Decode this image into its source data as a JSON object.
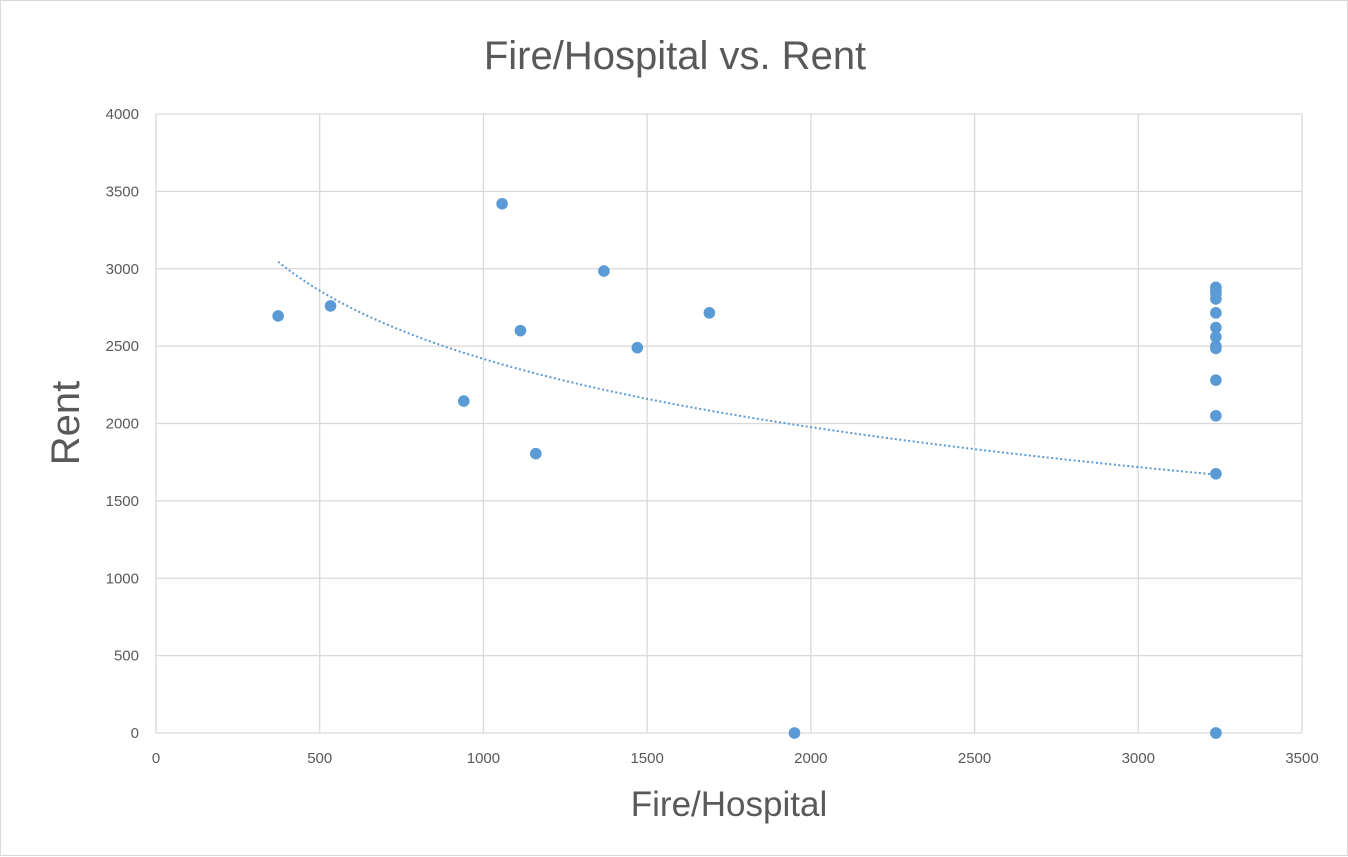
{
  "chart_data": {
    "type": "scatter",
    "title": "Fire/Hospital vs. Rent",
    "xlabel": "Fire/Hospital",
    "ylabel": "Rent",
    "xlim": [
      0,
      3500
    ],
    "ylim": [
      0,
      4000
    ],
    "x_ticks": [
      "0",
      "500",
      "1000",
      "1500",
      "2000",
      "2500",
      "3000",
      "3500"
    ],
    "y_ticks": [
      "0",
      "500",
      "1000",
      "1500",
      "2000",
      "2500",
      "3000",
      "3500",
      "4000"
    ],
    "grid": true,
    "series": [
      {
        "points": [
          [
            373,
            2695
          ],
          [
            533,
            2760
          ],
          [
            940,
            2145
          ],
          [
            1057,
            3420
          ],
          [
            1113,
            2600
          ],
          [
            1160,
            1805
          ],
          [
            1368,
            2985
          ],
          [
            1470,
            2490
          ],
          [
            1690,
            2715
          ],
          [
            1950,
            0
          ],
          [
            3237,
            2880
          ],
          [
            3237,
            2860
          ],
          [
            3237,
            2840
          ],
          [
            3237,
            2805
          ],
          [
            3237,
            2715
          ],
          [
            3237,
            2620
          ],
          [
            3237,
            2560
          ],
          [
            3237,
            2500
          ],
          [
            3237,
            2485
          ],
          [
            3237,
            2280
          ],
          [
            3237,
            2050
          ],
          [
            3237,
            1675
          ],
          [
            3237,
            0
          ],
          [
            3237,
            0
          ]
        ],
        "color": "#5b9bd5"
      }
    ],
    "trendline": {
      "type": "logarithmic",
      "style": "dotted",
      "color": "#5b9bd5",
      "x_range": [
        373,
        3237
      ],
      "endpoints": [
        [
          373,
          3045
        ],
        [
          3237,
          1670
        ]
      ]
    }
  }
}
